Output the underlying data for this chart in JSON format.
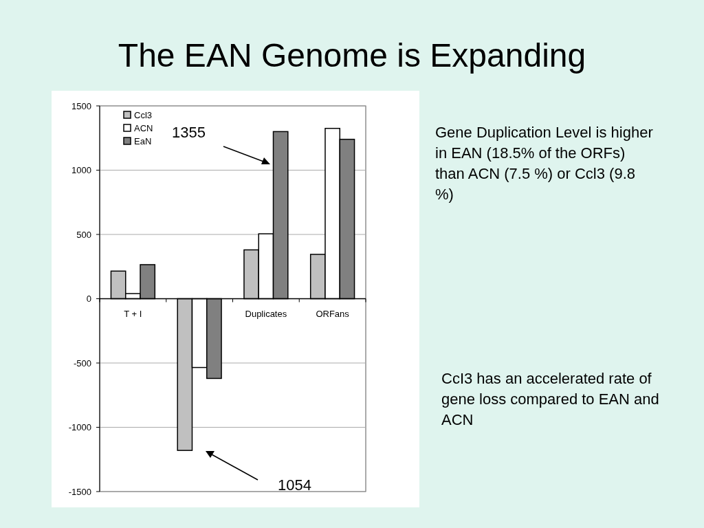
{
  "chart_data": {
    "type": "bar",
    "title": "The EAN Genome is Expanding",
    "categories": [
      "T + I",
      null,
      "Duplicates",
      "ORFans"
    ],
    "series": [
      {
        "name": "Ccl3",
        "color": "#c0c0c0",
        "values": [
          215,
          -1180,
          380,
          345
        ]
      },
      {
        "name": "ACN",
        "color": "#ffffff",
        "values": [
          40,
          -535,
          505,
          1325
        ]
      },
      {
        "name": "EaN",
        "color": "#808080",
        "values": [
          265,
          -620,
          1300,
          1240
        ]
      }
    ],
    "ylim": [
      -1500,
      1500
    ],
    "yticks": [
      -1500,
      -1000,
      -500,
      0,
      500,
      1000,
      1500
    ],
    "grid": "y",
    "legend": "top left",
    "annotations": [
      "1355",
      "1054",
      "Gene Duplication Level is higher in EAN (18.5% of the ORFs) than ACN (7.5 %) or Ccl3 (9.8 %)",
      "CcI3 has an accelerated rate of gene loss compared to EAN and ACN"
    ]
  }
}
